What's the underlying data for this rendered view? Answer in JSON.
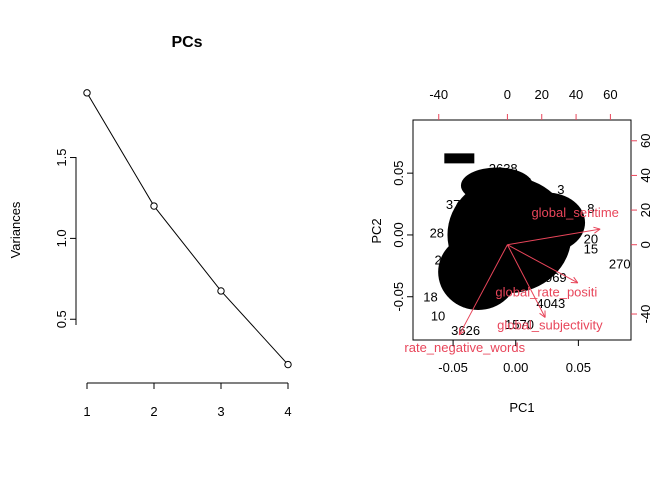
{
  "chart_data": [
    {
      "type": "line",
      "title": "PCs",
      "ylabel": "Variances",
      "xlabel": "",
      "x": [
        1,
        2,
        3,
        4
      ],
      "values": [
        1.9,
        1.2,
        0.675,
        0.22
      ],
      "xticks": [
        "1",
        "2",
        "3",
        "4"
      ],
      "yticks": [
        "0.5",
        "1.0",
        "1.5"
      ],
      "ylim": [
        0.18,
        1.93
      ]
    },
    {
      "type": "scatter",
      "subtype": "biplot",
      "xlabel": "PC1",
      "ylabel": "PC2",
      "xlim": [
        -0.082,
        0.092
      ],
      "ylim": [
        -0.085,
        0.093
      ],
      "xticks": [
        "-0.05",
        "0.00",
        "0.05"
      ],
      "yticks": [
        "-0.05",
        "0.00",
        "0.05"
      ],
      "top_ticks": [
        "-40",
        "0",
        "20",
        "40",
        "60"
      ],
      "right_ticks": [
        "-40",
        "0",
        "20",
        "40",
        "60"
      ],
      "loading_scale": [
        -55,
        72
      ],
      "point_labels": [
        {
          "text": "2638",
          "x": -0.01,
          "y": 0.054
        },
        {
          "text": "3",
          "x": -0.028,
          "y": 0.037
        },
        {
          "text": "37",
          "x": -0.05,
          "y": 0.025
        },
        {
          "text": "28",
          "x": -0.063,
          "y": 0.002
        },
        {
          "text": "20",
          "x": 0.06,
          "y": -0.003
        },
        {
          "text": "15",
          "x": 0.06,
          "y": -0.011
        },
        {
          "text": "270",
          "x": 0.083,
          "y": -0.023
        },
        {
          "text": "969",
          "x": 0.032,
          "y": -0.034
        },
        {
          "text": "4043",
          "x": 0.028,
          "y": -0.055
        },
        {
          "text": "1570",
          "x": 0.003,
          "y": -0.072
        },
        {
          "text": "10",
          "x": -0.062,
          "y": -0.065
        },
        {
          "text": "3626",
          "x": -0.04,
          "y": -0.077
        },
        {
          "text": "18",
          "x": -0.068,
          "y": -0.05
        },
        {
          "text": "3",
          "x": 0.04,
          "y": 0.022
        },
        {
          "text": "2",
          "x": -0.062,
          "y": -0.02
        },
        {
          "text": "4",
          "x": 0.01,
          "y": 0.043
        },
        {
          "text": "3",
          "x": 0.036,
          "y": 0.037
        },
        {
          "text": "8",
          "x": 0.06,
          "y": 0.022
        }
      ],
      "loadings": [
        {
          "name": "global_sentiment_polarity",
          "x": 54,
          "y": 9,
          "label": "global_sentime",
          "lx": 14,
          "ly": 16
        },
        {
          "name": "global_rate_positive_words",
          "x": 41,
          "y": -22,
          "label": "global_rate_positi",
          "lx": -7,
          "ly": -30
        },
        {
          "name": "global_subjectivity",
          "x": 22,
          "y": -42,
          "label": "global_subjectivity",
          "lx": -6,
          "ly": -49
        },
        {
          "name": "rate_negative_words",
          "x": -28,
          "y": -52,
          "label": "rate_negative_words",
          "lx": -60,
          "ly": -62
        }
      ],
      "colors": {
        "arrow": "#e8455a",
        "points": "#000000"
      }
    }
  ]
}
